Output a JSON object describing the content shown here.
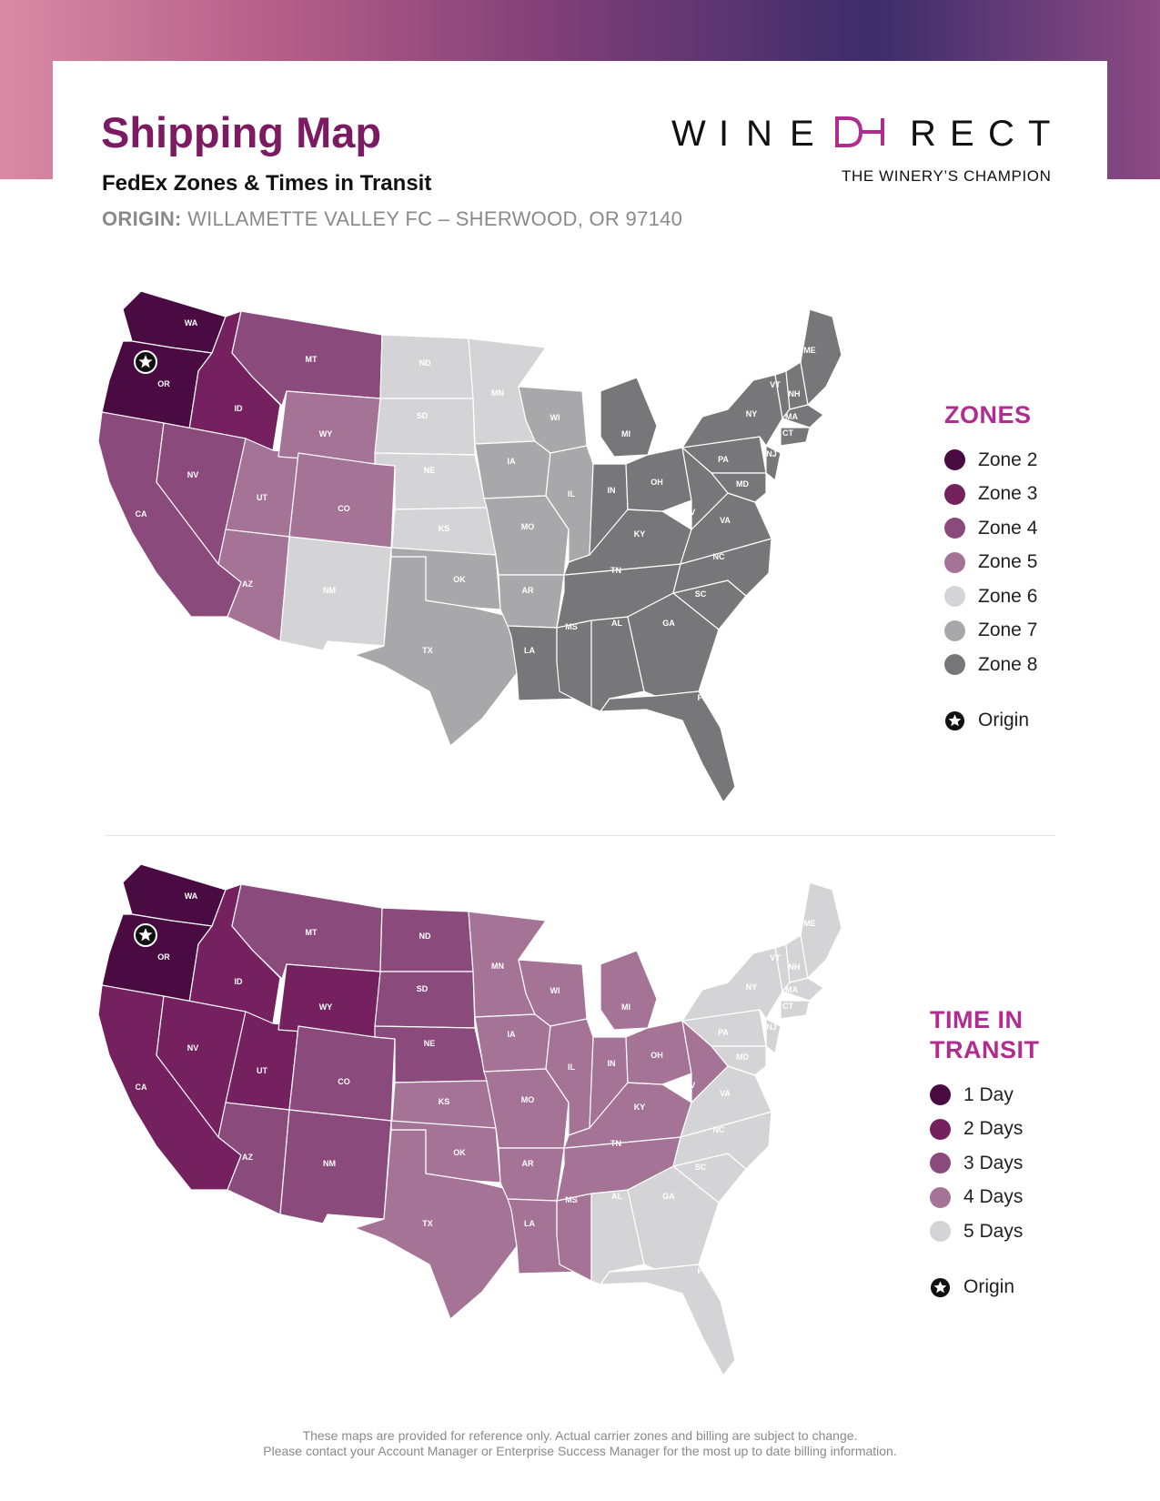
{
  "header": {
    "title": "Shipping Map",
    "subtitle": "FedEx Zones & Times in Transit",
    "origin_label": "ORIGIN:",
    "origin_value": "WILLAMETTE VALLEY FC – SHERWOOD, OR 97140"
  },
  "brand": {
    "logo_text": "WINE DIRECT",
    "tagline": "THE WINERY’S CHAMPION",
    "accent_color": "#b02c8f"
  },
  "legends": {
    "zones": {
      "title": "ZONES",
      "items": [
        {
          "label": "Zone 2",
          "color": "#4a0b42"
        },
        {
          "label": "Zone 3",
          "color": "#75205f"
        },
        {
          "label": "Zone 4",
          "color": "#8b4a7c"
        },
        {
          "label": "Zone 5",
          "color": "#a57396"
        },
        {
          "label": "Zone 6",
          "color": "#d4d4d6"
        },
        {
          "label": "Zone 7",
          "color": "#a8a8aa"
        },
        {
          "label": "Zone 8",
          "color": "#77777a"
        }
      ],
      "origin_label": "Origin"
    },
    "transit": {
      "title_line1": "TIME IN",
      "title_line2": "TRANSIT",
      "items": [
        {
          "label": "1 Day",
          "color": "#4a0b42"
        },
        {
          "label": "2 Days",
          "color": "#75205f"
        },
        {
          "label": "3 Days",
          "color": "#8b4a7c"
        },
        {
          "label": "4 Days",
          "color": "#a57396"
        },
        {
          "label": "5 Days",
          "color": "#d4d4d6"
        }
      ],
      "origin_label": "Origin"
    }
  },
  "origin_state": "OR",
  "states": [
    {
      "id": "WA",
      "zone": 2,
      "transit": 1
    },
    {
      "id": "OR",
      "zone": 2,
      "transit": 1
    },
    {
      "id": "ID",
      "zone": 3,
      "transit": 2
    },
    {
      "id": "CA",
      "zone": 4,
      "transit": 2
    },
    {
      "id": "NV",
      "zone": 4,
      "transit": 2
    },
    {
      "id": "MT",
      "zone": 4,
      "transit": 3
    },
    {
      "id": "UT",
      "zone": 5,
      "transit": 2
    },
    {
      "id": "AZ",
      "zone": 5,
      "transit": 3
    },
    {
      "id": "WY",
      "zone": 5,
      "transit": 2
    },
    {
      "id": "CO",
      "zone": 5,
      "transit": 3
    },
    {
      "id": "NM",
      "zone": 6,
      "transit": 3
    },
    {
      "id": "ND",
      "zone": 6,
      "transit": 3
    },
    {
      "id": "SD",
      "zone": 6,
      "transit": 3
    },
    {
      "id": "NE",
      "zone": 6,
      "transit": 3
    },
    {
      "id": "KS",
      "zone": 6,
      "transit": 4
    },
    {
      "id": "MN",
      "zone": 6,
      "transit": 4
    },
    {
      "id": "TX",
      "zone": 7,
      "transit": 4
    },
    {
      "id": "OK",
      "zone": 7,
      "transit": 4
    },
    {
      "id": "IA",
      "zone": 7,
      "transit": 4
    },
    {
      "id": "MO",
      "zone": 7,
      "transit": 4
    },
    {
      "id": "AR",
      "zone": 7,
      "transit": 4
    },
    {
      "id": "WI",
      "zone": 7,
      "transit": 4
    },
    {
      "id": "IL",
      "zone": 7,
      "transit": 4
    },
    {
      "id": "LA",
      "zone": 8,
      "transit": 4
    },
    {
      "id": "MS",
      "zone": 8,
      "transit": 4
    },
    {
      "id": "AL",
      "zone": 8,
      "transit": 5
    },
    {
      "id": "TN",
      "zone": 8,
      "transit": 4
    },
    {
      "id": "KY",
      "zone": 8,
      "transit": 4
    },
    {
      "id": "IN",
      "zone": 8,
      "transit": 4
    },
    {
      "id": "MI",
      "zone": 8,
      "transit": 4
    },
    {
      "id": "OH",
      "zone": 8,
      "transit": 4
    },
    {
      "id": "GA",
      "zone": 8,
      "transit": 5
    },
    {
      "id": "FL",
      "zone": 8,
      "transit": 5
    },
    {
      "id": "SC",
      "zone": 8,
      "transit": 5
    },
    {
      "id": "NC",
      "zone": 8,
      "transit": 5
    },
    {
      "id": "VA",
      "zone": 8,
      "transit": 5
    },
    {
      "id": "WV",
      "zone": 8,
      "transit": 4
    },
    {
      "id": "PA",
      "zone": 8,
      "transit": 5
    },
    {
      "id": "NY",
      "zone": 8,
      "transit": 5
    },
    {
      "id": "MD",
      "zone": 8,
      "transit": 5
    },
    {
      "id": "NJ",
      "zone": 8,
      "transit": 5
    },
    {
      "id": "VT",
      "zone": 8,
      "transit": 5
    },
    {
      "id": "NH",
      "zone": 8,
      "transit": 5
    },
    {
      "id": "MA",
      "zone": 8,
      "transit": 5
    },
    {
      "id": "CT",
      "zone": 8,
      "transit": 5
    },
    {
      "id": "ME",
      "zone": 8,
      "transit": 5
    }
  ],
  "footer": {
    "line1": "These maps are provided for reference only. Actual carrier zones and billing are subject to change.",
    "line2": "Please contact your Account Manager or Enterprise Success Manager for the most up to date billing information."
  }
}
